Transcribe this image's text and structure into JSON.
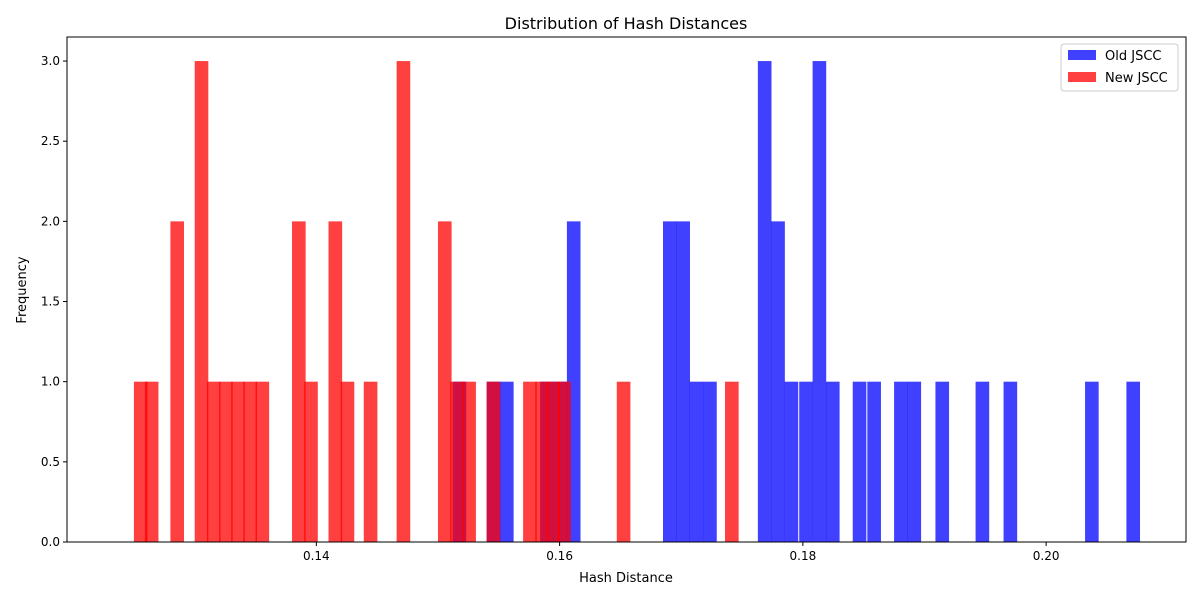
{
  "chart_data": {
    "type": "histogram",
    "title": "Distribution of Hash Distances",
    "xlabel": "Hash Distance",
    "ylabel": "Frequency",
    "xlim": [
      0.1195,
      0.2115
    ],
    "ylim": [
      0,
      3.15
    ],
    "x_ticks": [
      0.14,
      0.16,
      0.18,
      0.2
    ],
    "x_tick_labels": [
      "0.14",
      "0.16",
      "0.18",
      "0.20"
    ],
    "y_ticks": [
      0.0,
      0.5,
      1.0,
      1.5,
      2.0,
      2.5,
      3.0
    ],
    "y_tick_labels": [
      "0.0",
      "0.5",
      "1.0",
      "1.5",
      "2.0",
      "2.5",
      "3.0"
    ],
    "grid": false,
    "legend_position": "top-right",
    "bin_width": 0.00112,
    "series": [
      {
        "name": "Old JSCC",
        "color": "#0000ff",
        "opacity": 0.75,
        "bins": [
          {
            "x": 0.1512,
            "count": 1
          },
          {
            "x": 0.154,
            "count": 1
          },
          {
            "x": 0.1551,
            "count": 1
          },
          {
            "x": 0.1584,
            "count": 1
          },
          {
            "x": 0.1595,
            "count": 1
          },
          {
            "x": 0.1606,
            "count": 2
          },
          {
            "x": 0.1685,
            "count": 2
          },
          {
            "x": 0.1696,
            "count": 2
          },
          {
            "x": 0.1707,
            "count": 1
          },
          {
            "x": 0.1718,
            "count": 1
          },
          {
            "x": 0.1763,
            "count": 3
          },
          {
            "x": 0.1774,
            "count": 2
          },
          {
            "x": 0.1785,
            "count": 1
          },
          {
            "x": 0.1797,
            "count": 1
          },
          {
            "x": 0.1808,
            "count": 3
          },
          {
            "x": 0.1819,
            "count": 1
          },
          {
            "x": 0.1841,
            "count": 1
          },
          {
            "x": 0.1853,
            "count": 1
          },
          {
            "x": 0.1875,
            "count": 1
          },
          {
            "x": 0.1886,
            "count": 1
          },
          {
            "x": 0.1909,
            "count": 1
          },
          {
            "x": 0.1942,
            "count": 1
          },
          {
            "x": 0.1965,
            "count": 1
          },
          {
            "x": 0.2032,
            "count": 1
          },
          {
            "x": 0.2066,
            "count": 1
          }
        ]
      },
      {
        "name": "New JSCC",
        "color": "#ff0000",
        "opacity": 0.75,
        "bins": [
          {
            "x": 0.125,
            "count": 1
          },
          {
            "x": 0.1259,
            "count": 1
          },
          {
            "x": 0.128,
            "count": 2
          },
          {
            "x": 0.13,
            "count": 3
          },
          {
            "x": 0.131,
            "count": 1
          },
          {
            "x": 0.132,
            "count": 1
          },
          {
            "x": 0.133,
            "count": 1
          },
          {
            "x": 0.134,
            "count": 1
          },
          {
            "x": 0.135,
            "count": 1
          },
          {
            "x": 0.138,
            "count": 2
          },
          {
            "x": 0.139,
            "count": 1
          },
          {
            "x": 0.141,
            "count": 2
          },
          {
            "x": 0.142,
            "count": 1
          },
          {
            "x": 0.1439,
            "count": 1
          },
          {
            "x": 0.1466,
            "count": 3
          },
          {
            "x": 0.15,
            "count": 2
          },
          {
            "x": 0.151,
            "count": 1
          },
          {
            "x": 0.152,
            "count": 1
          },
          {
            "x": 0.154,
            "count": 1
          },
          {
            "x": 0.157,
            "count": 1
          },
          {
            "x": 0.158,
            "count": 1
          },
          {
            "x": 0.1589,
            "count": 1
          },
          {
            "x": 0.1598,
            "count": 1
          },
          {
            "x": 0.1647,
            "count": 1
          },
          {
            "x": 0.1736,
            "count": 1
          }
        ]
      }
    ]
  }
}
